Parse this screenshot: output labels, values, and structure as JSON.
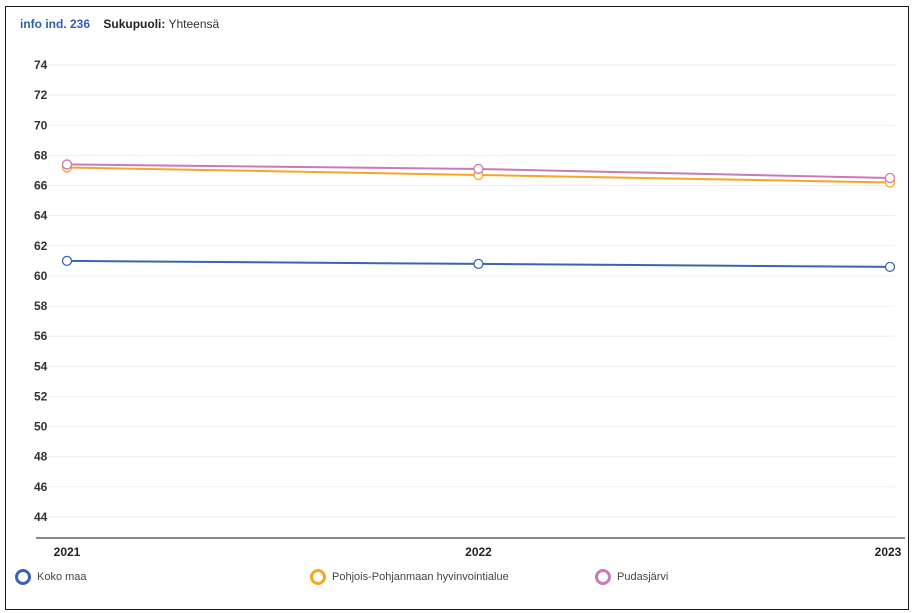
{
  "header": {
    "info_link": "info ind. 236",
    "filter_label": "Sukupuoli:",
    "filter_value": "Yhteensä"
  },
  "chart_data": {
    "type": "line",
    "categories": [
      "2021",
      "2022",
      "2023"
    ],
    "ylim": [
      43,
      75
    ],
    "yticks": [
      44,
      46,
      48,
      50,
      52,
      54,
      56,
      58,
      60,
      62,
      64,
      66,
      68,
      70,
      72,
      74
    ],
    "grid": true,
    "legend_position": "bottom",
    "series": [
      {
        "name": "Koko maa",
        "values": [
          61.0,
          60.8,
          60.6
        ],
        "color": "#3a64b0"
      },
      {
        "name": "Pohjois-Pohjanmaan hyvinvointialue",
        "values": [
          67.2,
          66.7,
          66.2
        ],
        "color": "#f5a623"
      },
      {
        "name": "Pudasjärvi",
        "values": [
          67.4,
          67.1,
          66.5
        ],
        "color": "#c97bb7"
      }
    ]
  }
}
